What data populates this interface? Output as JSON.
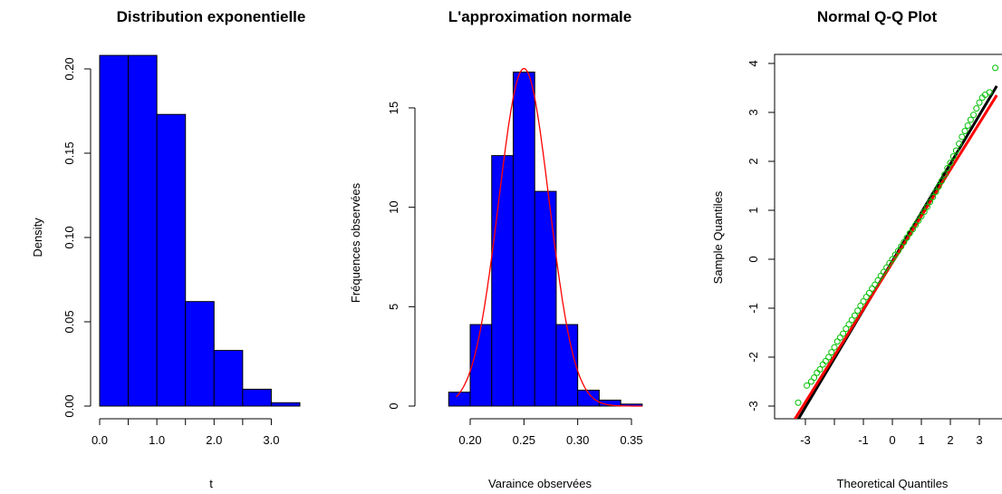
{
  "chart_data": [
    {
      "type": "bar",
      "title": "Distribution exponentielle",
      "xlabel": "t",
      "ylabel": "Density",
      "bin_edges": [
        0,
        0.5,
        1.0,
        1.5,
        2.0,
        2.5,
        3.0,
        3.5
      ],
      "values": [
        0.208,
        0.208,
        0.173,
        0.062,
        0.033,
        0.01,
        0.002
      ],
      "xlim": [
        0,
        3.5
      ],
      "ylim": [
        0,
        0.21
      ],
      "x_ticks": [
        0.0,
        0.5,
        1.0,
        1.5,
        2.0,
        2.5,
        3.0
      ],
      "x_tick_labels": [
        "0.0",
        "",
        "1.0",
        "",
        "2.0",
        "",
        "3.0"
      ],
      "y_ticks": [
        0.0,
        0.05,
        0.1,
        0.15,
        0.2
      ],
      "y_tick_labels": [
        "0.00",
        "0.05",
        "0.10",
        "0.15",
        "0.20"
      ],
      "bar_color": "#0000ff",
      "grid": false
    },
    {
      "type": "bar",
      "title": "L'approximation normale",
      "xlabel": "Varaince observées",
      "ylabel": "Fréquences observées",
      "bin_edges": [
        0.18,
        0.2,
        0.22,
        0.24,
        0.26,
        0.28,
        0.3,
        0.32,
        0.34,
        0.36
      ],
      "values": [
        0.7,
        4.1,
        12.6,
        16.8,
        10.8,
        4.1,
        0.8,
        0.3,
        0.1
      ],
      "overlay_curve": {
        "type": "line",
        "distribution": "normal",
        "mean": 0.25,
        "sd": 0.0235,
        "color": "#ff0000"
      },
      "xlim": [
        0.18,
        0.36
      ],
      "ylim": [
        0,
        17
      ],
      "x_ticks": [
        0.2,
        0.25,
        0.3,
        0.35
      ],
      "x_tick_labels": [
        "0.20",
        "0.25",
        "0.30",
        "0.35"
      ],
      "y_ticks": [
        0,
        5,
        10,
        15
      ],
      "y_tick_labels": [
        "0",
        "5",
        "10",
        "15"
      ],
      "bar_color": "#0000ff",
      "grid": false
    },
    {
      "type": "scatter",
      "title": "Normal Q-Q Plot",
      "xlabel": "Theoretical Quantiles",
      "ylabel": "Sample Quantiles",
      "xlim": [
        -3.4,
        3.6
      ],
      "ylim": [
        -3.2,
        4.2
      ],
      "x_ticks": [
        -3,
        -2,
        -1,
        0,
        1,
        2,
        3
      ],
      "x_tick_labels": [
        "-3",
        "",
        "-1",
        "0",
        "1",
        "2",
        "3"
      ],
      "y_ticks": [
        -3,
        -2,
        -1,
        0,
        1,
        2,
        3,
        4
      ],
      "y_tick_labels": [
        "-3",
        "-2",
        "-1",
        "0",
        "1",
        "2",
        "3",
        "4"
      ],
      "points": [
        [
          -3.25,
          -2.93
        ],
        [
          -2.95,
          -2.58
        ],
        [
          -2.8,
          -2.5
        ],
        [
          -2.7,
          -2.42
        ],
        [
          -2.6,
          -2.32
        ],
        [
          -2.5,
          -2.25
        ],
        [
          -2.4,
          -2.15
        ],
        [
          -2.3,
          -2.08
        ],
        [
          -2.2,
          -2.0
        ],
        [
          -2.1,
          -1.9
        ],
        [
          -2.0,
          -1.8
        ],
        [
          -1.9,
          -1.68
        ],
        [
          -1.8,
          -1.6
        ],
        [
          -1.7,
          -1.52
        ],
        [
          -1.6,
          -1.42
        ],
        [
          -1.5,
          -1.33
        ],
        [
          -1.4,
          -1.24
        ],
        [
          -1.3,
          -1.15
        ],
        [
          -1.2,
          -1.05
        ],
        [
          -1.1,
          -0.95
        ],
        [
          -1.0,
          -0.86
        ],
        [
          -0.9,
          -0.77
        ],
        [
          -0.8,
          -0.69
        ],
        [
          -0.7,
          -0.6
        ],
        [
          -0.6,
          -0.52
        ],
        [
          -0.5,
          -0.43
        ],
        [
          -0.4,
          -0.34
        ],
        [
          -0.3,
          -0.26
        ],
        [
          -0.2,
          -0.17
        ],
        [
          -0.1,
          -0.08
        ],
        [
          0.0,
          0.0
        ],
        [
          0.1,
          0.09
        ],
        [
          0.2,
          0.17
        ],
        [
          0.3,
          0.26
        ],
        [
          0.4,
          0.35
        ],
        [
          0.5,
          0.44
        ],
        [
          0.6,
          0.53
        ],
        [
          0.7,
          0.61
        ],
        [
          0.8,
          0.7
        ],
        [
          0.9,
          0.79
        ],
        [
          1.0,
          0.88
        ],
        [
          1.1,
          0.97
        ],
        [
          1.2,
          1.07
        ],
        [
          1.3,
          1.17
        ],
        [
          1.4,
          1.27
        ],
        [
          1.5,
          1.38
        ],
        [
          1.6,
          1.49
        ],
        [
          1.7,
          1.6
        ],
        [
          1.8,
          1.73
        ],
        [
          1.9,
          1.86
        ],
        [
          2.0,
          1.97
        ],
        [
          2.1,
          2.1
        ],
        [
          2.2,
          2.22
        ],
        [
          2.3,
          2.36
        ],
        [
          2.4,
          2.5
        ],
        [
          2.5,
          2.62
        ],
        [
          2.6,
          2.73
        ],
        [
          2.7,
          2.85
        ],
        [
          2.8,
          2.95
        ],
        [
          2.9,
          3.08
        ],
        [
          3.0,
          3.2
        ],
        [
          3.1,
          3.3
        ],
        [
          3.2,
          3.36
        ],
        [
          3.35,
          3.41
        ],
        [
          3.55,
          3.91
        ]
      ],
      "point_color": "#00c000",
      "lines": [
        {
          "name": "",
          "color": "#000000",
          "x": [
            -3.4,
            3.6
          ],
          "y": [
            -3.42,
            3.54
          ]
        },
        {
          "name": "",
          "color": "#ff0000",
          "x": [
            -3.4,
            3.6
          ],
          "y": [
            -3.3,
            3.35
          ]
        }
      ],
      "grid": false
    }
  ]
}
